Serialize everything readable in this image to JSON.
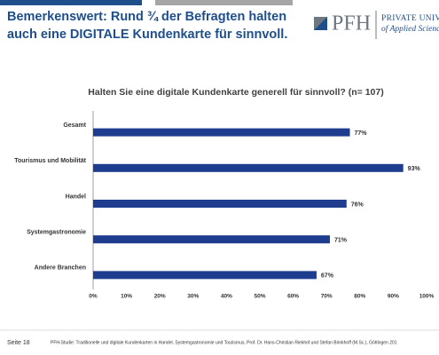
{
  "slide": {
    "title_lines": [
      "Bemerkenswert: Rund ¾ der Befragten halten",
      "auch eine DIGITALE Kundenkarte für sinnvoll."
    ],
    "logo": {
      "name": "PFH",
      "line1": "PRIVATE UNIVERS",
      "line2": "of Applied Scienc"
    },
    "page": "Seite 18",
    "footnote": "PFH-Studie: Traditionelle und digitale Kundenkarten in Handel, Systemgastronomie und Tourismus, Prof. Dr. Hans-Christian Riekhof und Stefan Brinkhoff (M.Sc.), Göttingen 201"
  },
  "chart_data": {
    "type": "bar",
    "orientation": "horizontal",
    "title": "Halten Sie eine digitale Kundenkarte generell für sinnvoll?  (n= 107)",
    "categories": [
      "Gesamt",
      "Tourismus und Mobilität",
      "Handel",
      "Systemgastronomie",
      "Andere Branchen"
    ],
    "values": [
      77,
      93,
      76,
      71,
      67
    ],
    "value_labels": [
      "77%",
      "93%",
      "76%",
      "71%",
      "67%"
    ],
    "color": "#1f3d8f",
    "xlim": [
      0,
      100
    ],
    "xticks": [
      {
        "value": 0,
        "label": "0%"
      },
      {
        "value": 10,
        "label": "10%"
      },
      {
        "value": 20,
        "label": "20%"
      },
      {
        "value": 30,
        "label": "30%"
      },
      {
        "value": 40,
        "label": "40%"
      },
      {
        "value": 50,
        "label": "50%"
      },
      {
        "value": 60,
        "label": "60%"
      },
      {
        "value": 70,
        "label": "70%"
      },
      {
        "value": 80,
        "label": "80%"
      },
      {
        "value": 90,
        "label": "90%"
      },
      {
        "value": 100,
        "label": "100%"
      }
    ],
    "grid": false
  }
}
